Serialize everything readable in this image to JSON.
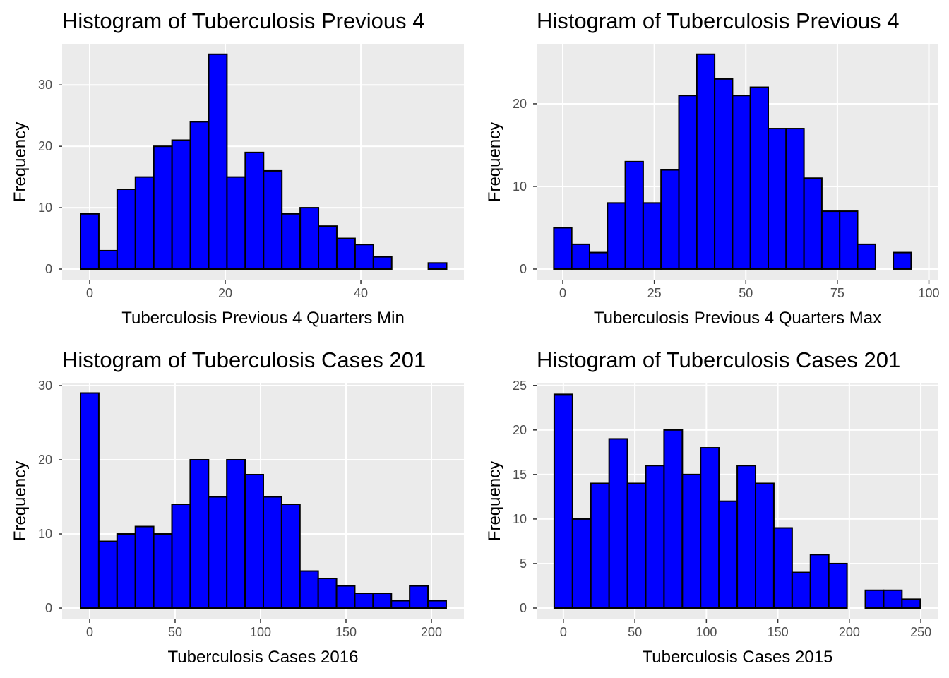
{
  "chart_data": [
    {
      "type": "histogram",
      "title": "Histogram of Tuberculosis Previous 4",
      "xlabel": "Tuberculosis Previous 4 Quarters Min",
      "ylabel": "Frequency",
      "bins": [
        -1.35,
        1.35,
        4.05,
        6.75,
        9.45,
        12.15,
        14.85,
        17.55,
        20.25,
        22.95,
        25.65,
        28.35,
        31.05,
        33.75,
        36.45,
        39.15,
        41.85,
        44.55,
        47.25,
        49.95,
        52.65
      ],
      "counts": [
        9,
        3,
        13,
        15,
        20,
        21,
        24,
        35,
        15,
        19,
        16,
        9,
        10,
        7,
        5,
        4,
        2,
        0,
        0,
        1
      ],
      "color": "#0000ff",
      "xlim": [
        -4.06,
        55.2
      ],
      "ylim": [
        -1.84,
        36.7
      ],
      "xticks": [
        0,
        20,
        40
      ],
      "yticks": [
        0,
        10,
        20,
        30
      ],
      "grid": true
    },
    {
      "type": "histogram",
      "title": "Histogram of Tuberculosis Previous 4",
      "xlabel": "Tuberculosis Previous 4 Quarters Max",
      "ylabel": "Frequency",
      "bins": [
        -2.44,
        2.44,
        7.32,
        12.2,
        17.08,
        21.96,
        26.84,
        31.72,
        36.6,
        41.48,
        46.36,
        51.24,
        56.12,
        61,
        65.88,
        70.76,
        75.64,
        80.52,
        85.4,
        90.28,
        95.16
      ],
      "counts": [
        5,
        3,
        2,
        8,
        13,
        8,
        12,
        21,
        26,
        23,
        21,
        22,
        17,
        17,
        11,
        7,
        7,
        3,
        0,
        2
      ],
      "color": "#0000ff",
      "xlim": [
        -7.14,
        102.6
      ],
      "ylim": [
        -1.37,
        27.26
      ],
      "xticks": [
        0,
        25,
        50,
        75,
        100
      ],
      "yticks": [
        0,
        10,
        20
      ],
      "grid": true
    },
    {
      "type": "histogram",
      "title": "Histogram of Tuberculosis Cases 201",
      "xlabel": "Tuberculosis Cases 2016",
      "ylabel": "Frequency",
      "bins": [
        -5.35,
        5.35,
        16.05,
        26.75,
        37.45,
        48.15,
        58.85,
        69.55,
        80.25,
        90.95,
        101.65,
        112.35,
        123.05,
        133.75,
        144.45,
        155.15,
        165.85,
        176.55,
        187.25,
        197.95,
        208.65
      ],
      "counts": [
        29,
        9,
        10,
        11,
        10,
        14,
        20,
        15,
        20,
        18,
        15,
        14,
        5,
        4,
        3,
        2,
        2,
        1,
        3,
        1
      ],
      "color": "#0000ff",
      "xlim": [
        -16.1,
        219
      ],
      "ylim": [
        -1.52,
        30.38
      ],
      "xticks": [
        0,
        50,
        100,
        150,
        200
      ],
      "yticks": [
        0,
        10,
        20,
        30
      ],
      "grid": true
    },
    {
      "type": "histogram",
      "title": "Histogram of Tuberculosis Cases 201",
      "xlabel": "Tuberculosis Cases 2015",
      "ylabel": "Frequency",
      "bins": [
        -6.4,
        6.4,
        19.2,
        32,
        44.8,
        57.6,
        70.4,
        83.2,
        96,
        108.8,
        121.6,
        134.4,
        147.2,
        160,
        172.8,
        185.6,
        198.4,
        211.2,
        224,
        236.8,
        249.6
      ],
      "counts": [
        24,
        10,
        14,
        19,
        14,
        16,
        20,
        15,
        18,
        12,
        16,
        14,
        9,
        4,
        6,
        5,
        0,
        2,
        2,
        1
      ],
      "color": "#0000ff",
      "xlim": [
        -18.7,
        262.3
      ],
      "ylim": [
        -1.27,
        25.3
      ],
      "xticks": [
        0,
        50,
        100,
        150,
        200,
        250
      ],
      "yticks": [
        0,
        5,
        10,
        15,
        20,
        25
      ],
      "grid": true
    }
  ]
}
